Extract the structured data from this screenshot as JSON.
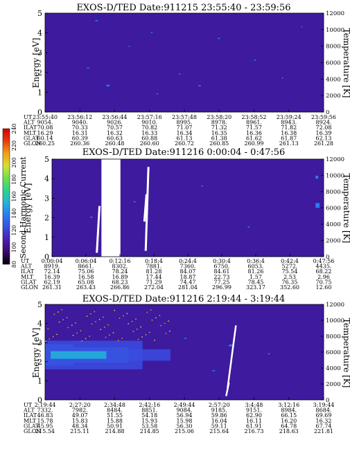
{
  "colors": {
    "background": "#3d1a9e",
    "cb_stops": [
      "#000000",
      "#3a0a6a",
      "#4a1fb0",
      "#3a4de0",
      "#2a7cf0",
      "#21b5d8",
      "#2ed38a",
      "#6fe04a",
      "#d8e033",
      "#f2a014",
      "#e83a10",
      "#d00000"
    ]
  },
  "chart_data": [
    {
      "type": "heatmap",
      "title": "EXOS-D/TED    Date:911215  23:55:40 - 23:59:56",
      "ylabel": "Energy [eV]",
      "y2label": "Temperature [K]",
      "ylim": [
        0,
        5
      ],
      "yticks": [
        "0",
        "1",
        "2",
        "3",
        "4",
        "5"
      ],
      "y2lim": [
        0,
        12000
      ],
      "y2ticks": [
        "0",
        "2000",
        "4000",
        "6000",
        "8000",
        "10000",
        "12000"
      ],
      "row_labels": [
        "UT",
        "ALT",
        "ILAT",
        "MLT",
        "GLAT",
        "GLON"
      ],
      "columns": [
        [
          "23:55:40",
          "9054.",
          "70.08",
          "16.29",
          "60.14",
          "260.25"
        ],
        [
          "23:56:12",
          "9040.",
          "70.33",
          "16.31",
          "60.39",
          "260.36"
        ],
        [
          "23:56:44",
          "9026.",
          "70.57",
          "16.32",
          "60.63",
          "260.48"
        ],
        [
          "23:57:16",
          "9010.",
          "70.82",
          "16.33",
          "60.88",
          "260.60"
        ],
        [
          "23:57:48",
          "8995.",
          "71.07",
          "16.34",
          "61.13",
          "260.72"
        ],
        [
          "23:58:20",
          "8978.",
          "71.32",
          "16.35",
          "61.38",
          "260.85"
        ],
        [
          "23:58:52",
          "8961.",
          "71.57",
          "16.36",
          "61.62",
          "260.99"
        ],
        [
          "23:59:24",
          "8943.",
          "71.82",
          "16.38",
          "61.87",
          "261.13"
        ],
        [
          "23:59:56",
          "8924.",
          "72.08",
          "16.39",
          "62.13",
          "261.28"
        ]
      ],
      "patches": [
        [
          18,
          4.6,
          1.0,
          0.05
        ],
        [
          38,
          4.0,
          0.6,
          0.05
        ],
        [
          62,
          3.7,
          0.8,
          0.05
        ],
        [
          30,
          3.3,
          0.5,
          0.05
        ],
        [
          75,
          2.6,
          0.7,
          0.05
        ],
        [
          15,
          2.2,
          0.9,
          0.05
        ],
        [
          48,
          1.9,
          0.6,
          0.05
        ],
        [
          22,
          1.3,
          1.2,
          0.08
        ],
        [
          55,
          1.3,
          0.9,
          0.06
        ],
        [
          85,
          1.7,
          0.5,
          0.05
        ],
        [
          40,
          0.9,
          0.6,
          0.05
        ],
        [
          92,
          4.3,
          0.4,
          0.04
        ]
      ],
      "gaps": []
    },
    {
      "type": "heatmap",
      "title": "EXOS-D/TED    Date:911216  0:00:04 - 0:47:56",
      "ylabel": "Energy [eV]",
      "y2label": "Temperature [K]",
      "ylim": [
        0,
        5
      ],
      "yticks": [
        "0",
        "1",
        "2",
        "3",
        "4",
        "5"
      ],
      "y2lim": [
        0,
        12000
      ],
      "y2ticks": [
        "0",
        "2000",
        "4000",
        "6000",
        "8000",
        "10000",
        "12000"
      ],
      "row_labels": [
        "UT",
        "ALT",
        "ILAT",
        "MLT",
        "GLAT",
        "GLON"
      ],
      "columns": [
        [
          "0:00:04",
          "8919.",
          "72.14",
          "16.39",
          "62.19",
          "261.31"
        ],
        [
          "0:06:04",
          "8661.",
          "75.06",
          "16.58",
          "65.08",
          "263.43"
        ],
        [
          "0:12:16",
          "8302.",
          "78.24",
          "16.89",
          "68.23",
          "266.86"
        ],
        [
          "0:18:4",
          "7881.",
          "81.28",
          "17.44",
          "71.29",
          "272.04"
        ],
        [
          "0:24:4",
          "7360.",
          "84.07",
          "18.87",
          "74.47",
          "281.04"
        ],
        [
          "0:30:4",
          "6750.",
          "84.61",
          "22.73",
          "77.25",
          "296.99"
        ],
        [
          "0:36:4",
          "6053.",
          "81.26",
          "1.57",
          "78.45",
          "323.17"
        ],
        [
          "0:42:4",
          "5272.",
          "75.54",
          "2.53",
          "76.35",
          "352.60"
        ],
        [
          "0:47:56",
          "4435.",
          "68.22",
          "2.96",
          "70.75",
          "12.60"
        ]
      ],
      "patches": [
        [
          14,
          2.0,
          1.0,
          0.05
        ],
        [
          30,
          2.8,
          0.8,
          0.04
        ],
        [
          55,
          3.6,
          0.6,
          0.05
        ],
        [
          72,
          1.5,
          0.8,
          0.05
        ],
        [
          97,
          2.5,
          1.5,
          0.25
        ],
        [
          97,
          4.0,
          1.0,
          0.15
        ]
      ],
      "gaps": [
        [
          18.2,
          25.2
        ]
      ]
    },
    {
      "type": "heatmap",
      "title": "EXOS-D/TED    Date:911216  2:19:44 - 3:19:44",
      "ylabel": "Energy [eV]",
      "y2label": "Temperature [K]",
      "ylim": [
        0,
        5
      ],
      "yticks": [
        "0",
        "1",
        "2",
        "3",
        "4",
        "5"
      ],
      "y2lim": [
        0,
        12000
      ],
      "y2ticks": [
        "0",
        "2000",
        "4000",
        "6000",
        "8000",
        "10000",
        "12000"
      ],
      "row_labels": [
        "UT",
        "ALT",
        "ILAT",
        "MLT",
        "GLAT",
        "GLON"
      ],
      "columns": [
        [
          "2:19:44",
          "7332.",
          "46.83",
          "15.78",
          "45.95",
          "215.54"
        ],
        [
          "2:27:20",
          "7982.",
          "49.07",
          "15.83",
          "48.34",
          "215.11"
        ],
        [
          "2:34:48",
          "8484.",
          "51.55",
          "15.88",
          "50.91",
          "214.88"
        ],
        [
          "2:42:16",
          "8851.",
          "54.18",
          "15.93",
          "53.58",
          "214.85"
        ],
        [
          "2:49:44",
          "9084.",
          "56.94",
          "15.98",
          "56.30",
          "215.06"
        ],
        [
          "2:57:20",
          "9185.",
          "59.86",
          "16.04",
          "59.11",
          "215.64"
        ],
        [
          "3:4:48",
          "9151.",
          "62.90",
          "16.11",
          "61.91",
          "216.73"
        ],
        [
          "3:12:16",
          "8984.",
          "66.15",
          "16.20",
          "64.78",
          "218.63"
        ],
        [
          "3:19:44",
          "8684.",
          "69.69",
          "16.32",
          "67.74",
          "221.81"
        ]
      ],
      "band": [
        {
          "x0": 0,
          "x1": 10,
          "y0": 1.8,
          "y1": 2.9,
          "color": "#2a7cf0"
        },
        {
          "x0": 10,
          "x1": 30,
          "y0": 1.95,
          "y1": 2.75,
          "color": "#2a7cf0"
        },
        {
          "x0": 30,
          "x1": 45,
          "y0": 2.05,
          "y1": 2.65,
          "color": "#3a4de0"
        },
        {
          "x0": 0,
          "x1": 35,
          "y0": 1.6,
          "y1": 3.1,
          "color": "#3a4de0"
        },
        {
          "x0": 2,
          "x1": 22,
          "y0": 2.15,
          "y1": 2.55,
          "color": "#21b5d8"
        }
      ],
      "patches": [
        [
          50,
          3.2,
          0.8,
          0.05
        ],
        [
          60,
          1.5,
          1.0,
          0.05
        ],
        [
          80,
          2.4,
          0.7,
          0.04
        ],
        [
          66,
          2.8,
          1.2,
          0.1
        ]
      ],
      "gaps": []
    }
  ],
  "colorbar": {
    "label": "Second Harmonic Current",
    "ticks": [
      "80",
      "100",
      "120",
      "140",
      "160",
      "180",
      "200",
      "220",
      "240"
    ]
  }
}
